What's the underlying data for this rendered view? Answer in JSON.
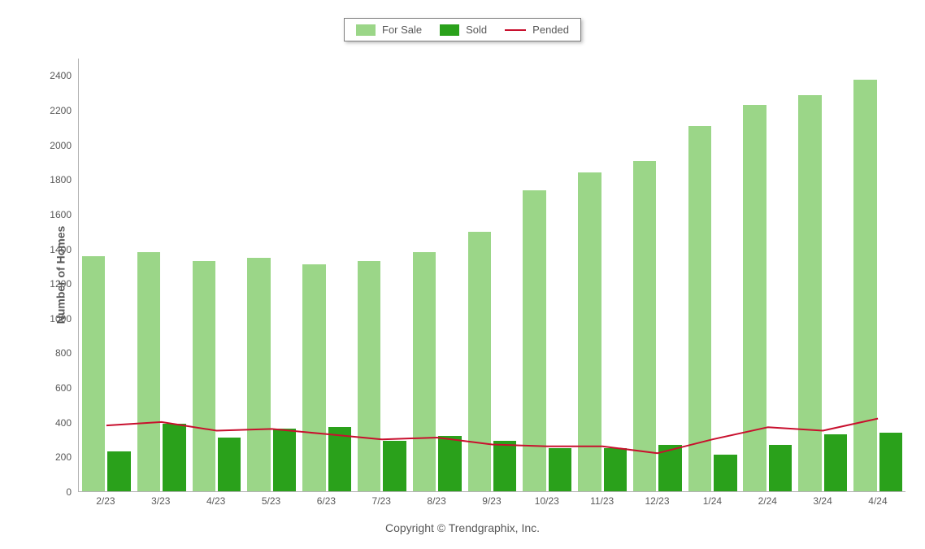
{
  "chart": {
    "type": "grouped-bar-with-line",
    "ylabel": "Number of Homes",
    "ylim": [
      0,
      2500
    ],
    "ytick_step": 200,
    "yticks": [
      0,
      200,
      400,
      600,
      800,
      1000,
      1200,
      1400,
      1600,
      1800,
      2000,
      2200,
      2400
    ],
    "categories": [
      "2/23",
      "3/23",
      "4/23",
      "5/23",
      "6/23",
      "7/23",
      "8/23",
      "9/23",
      "10/23",
      "11/23",
      "12/23",
      "1/24",
      "2/24",
      "3/24",
      "4/24"
    ],
    "series": {
      "for_sale": {
        "label": "For Sale",
        "type": "bar",
        "color": "#9bd688",
        "values": [
          1360,
          1380,
          1330,
          1350,
          1310,
          1330,
          1380,
          1500,
          1740,
          1840,
          1910,
          2110,
          2230,
          2290,
          2380
        ]
      },
      "sold": {
        "label": "Sold",
        "type": "bar",
        "color": "#2aa11b",
        "values": [
          230,
          390,
          310,
          360,
          370,
          290,
          320,
          290,
          250,
          250,
          270,
          210,
          270,
          330,
          340
        ]
      },
      "pended": {
        "label": "Pended",
        "type": "line",
        "color": "#c8102e",
        "line_width": 2,
        "values": [
          380,
          400,
          350,
          360,
          330,
          300,
          310,
          270,
          260,
          260,
          220,
          300,
          370,
          350,
          420
        ]
      }
    },
    "legend": {
      "border_color": "#7f7f7f",
      "background": "#ffffff"
    },
    "axis_color": "#b3b3b3",
    "tick_font_size": 12,
    "label_font_size": 14,
    "background_color": "#ffffff",
    "copyright": "Copyright © Trendgraphix, Inc."
  }
}
